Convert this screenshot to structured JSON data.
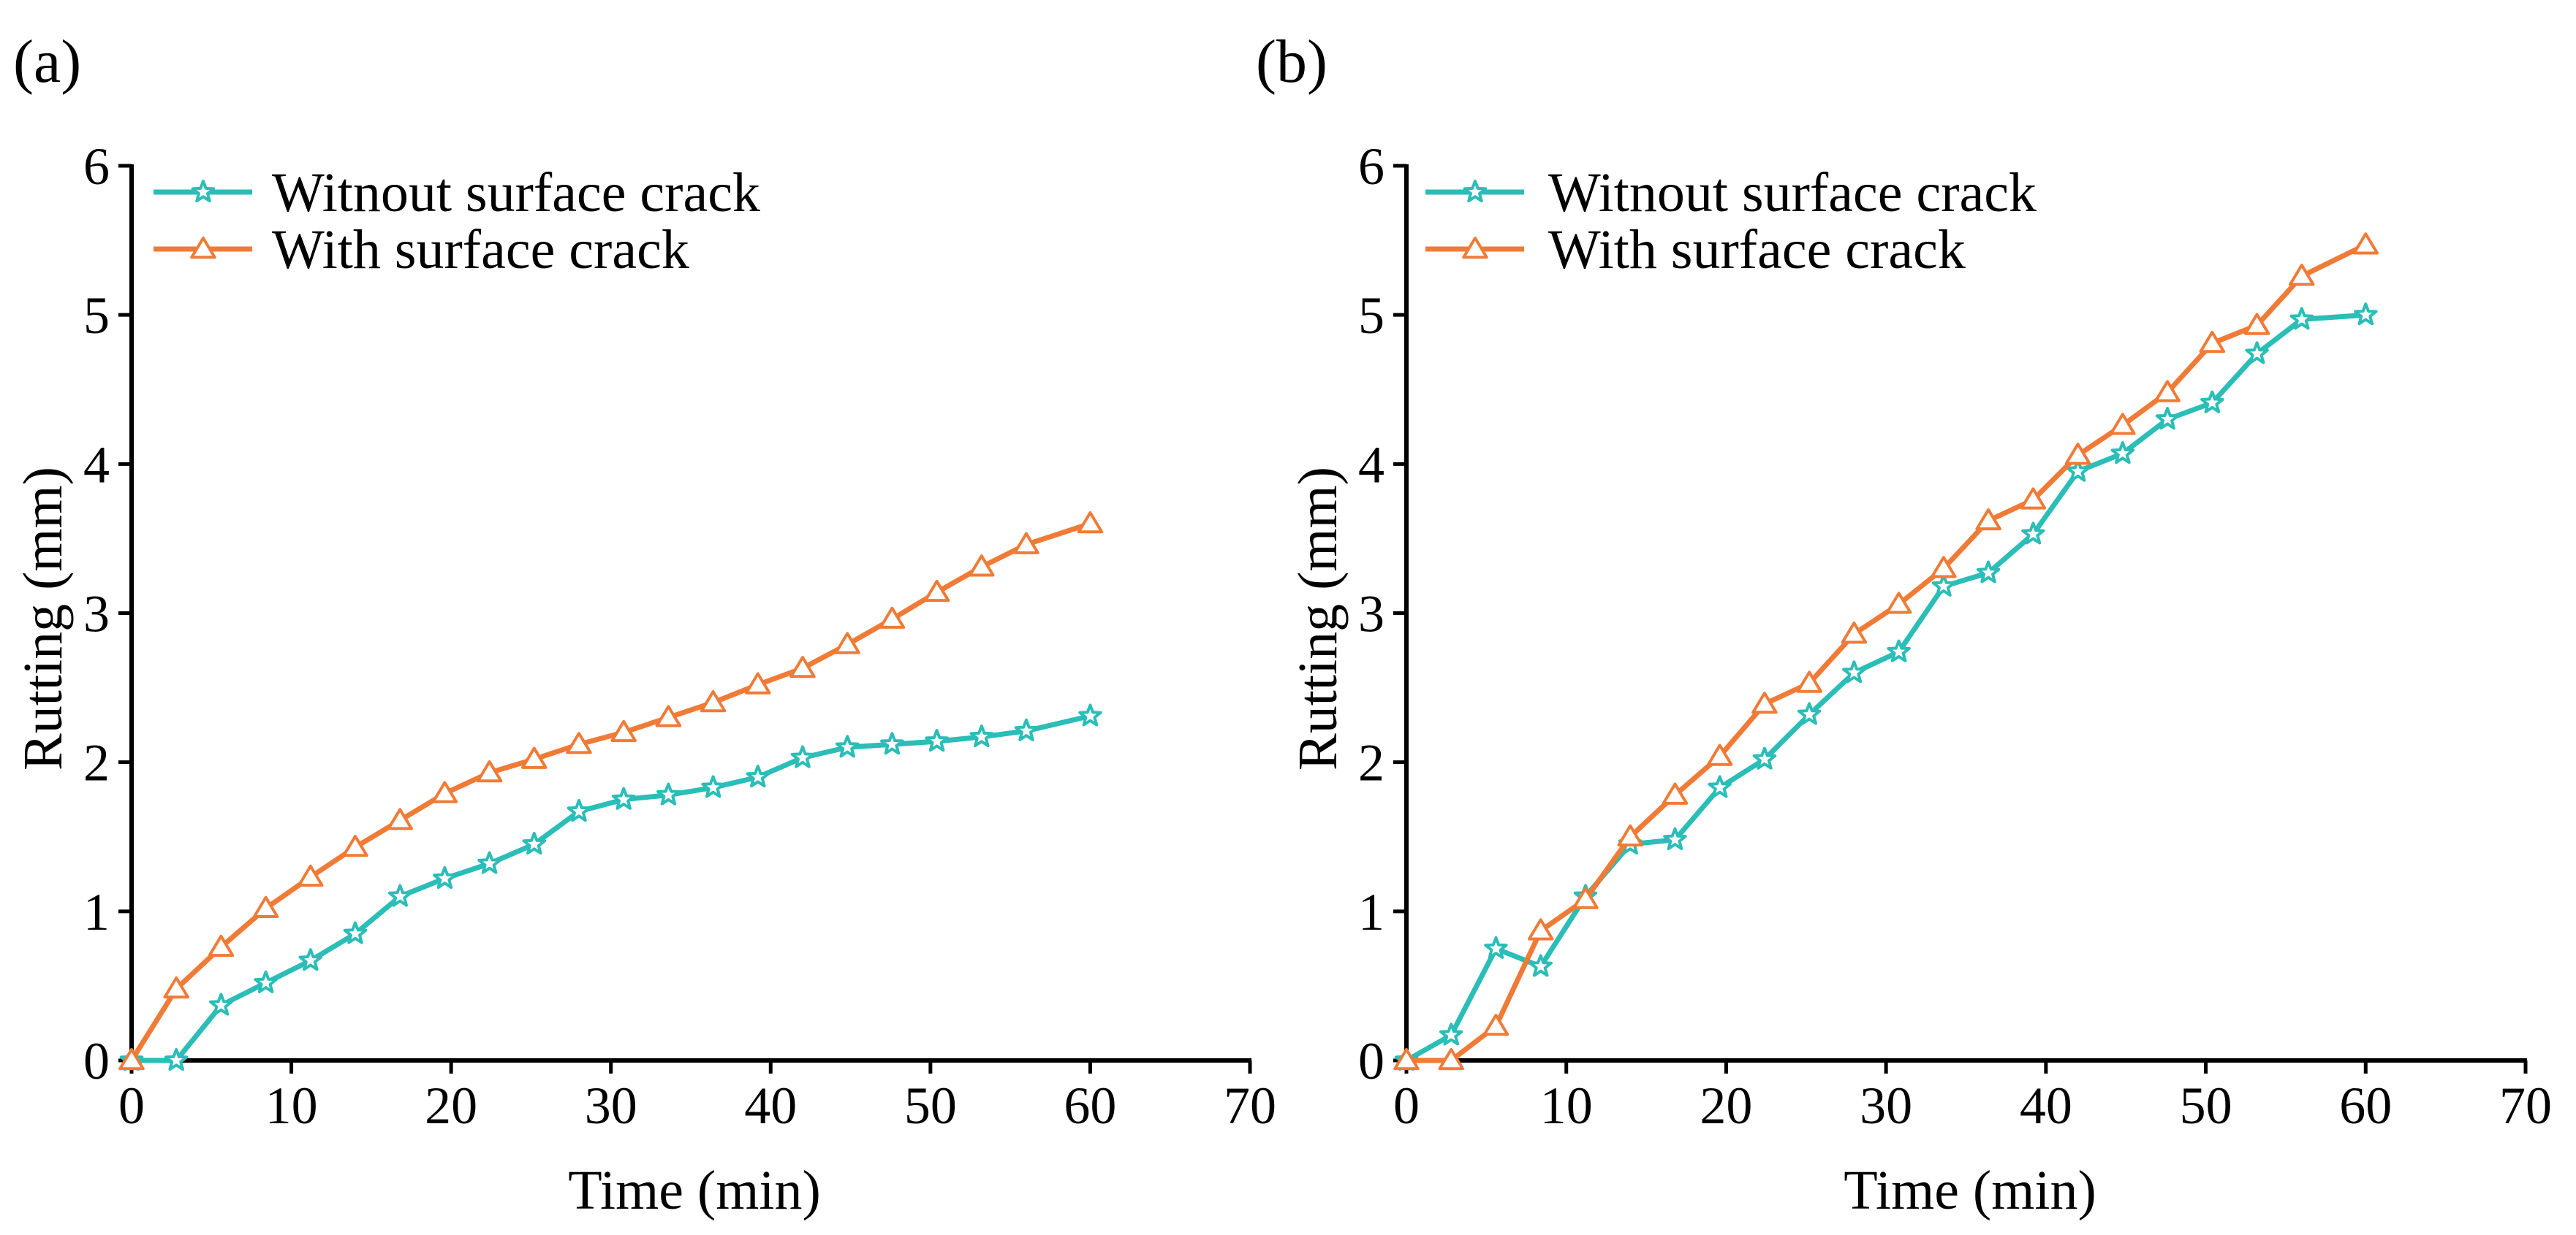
{
  "colors": {
    "without": "#2bbdb7",
    "with": "#f07b36",
    "axis": "#000000"
  },
  "chart_data": [
    {
      "type": "line",
      "panel_label": "(a)",
      "xlabel": "Time (min)",
      "ylabel": "Rutting (mm)",
      "xlim": [
        0,
        70
      ],
      "ylim": [
        0,
        6
      ],
      "xticks": [
        0,
        10,
        20,
        30,
        40,
        50,
        60,
        70
      ],
      "yticks": [
        0,
        1,
        2,
        3,
        4,
        5,
        6
      ],
      "grid": false,
      "legend_position": "top-left",
      "series": [
        {
          "name": "Witnout surface crack",
          "marker": "star",
          "color": "#2bbdb7",
          "x": [
            0,
            2.8,
            5.6,
            8.4,
            11.2,
            14,
            16.8,
            19.6,
            22.4,
            25.2,
            28,
            30.8,
            33.6,
            36.4,
            39.2,
            42,
            44.8,
            47.6,
            50.4,
            53.2,
            56,
            60
          ],
          "y": [
            0,
            0,
            0.37,
            0.52,
            0.67,
            0.85,
            1.1,
            1.22,
            1.32,
            1.45,
            1.67,
            1.75,
            1.78,
            1.83,
            1.9,
            2.03,
            2.1,
            2.12,
            2.14,
            2.17,
            2.21,
            2.31
          ]
        },
        {
          "name": "With surface crack",
          "marker": "triangle",
          "color": "#f07b36",
          "x": [
            0,
            2.8,
            5.6,
            8.4,
            11.2,
            14,
            16.8,
            19.6,
            22.4,
            25.2,
            28,
            30.8,
            33.6,
            36.4,
            39.2,
            42,
            44.8,
            47.6,
            50.4,
            53.2,
            56,
            60
          ],
          "y": [
            0,
            0.48,
            0.76,
            1.02,
            1.23,
            1.43,
            1.61,
            1.79,
            1.93,
            2.02,
            2.12,
            2.2,
            2.3,
            2.4,
            2.52,
            2.63,
            2.79,
            2.96,
            3.14,
            3.31,
            3.46,
            3.6
          ]
        }
      ]
    },
    {
      "type": "line",
      "panel_label": "(b)",
      "xlabel": "Time (min)",
      "ylabel": "Rutting (mm)",
      "xlim": [
        0,
        70
      ],
      "ylim": [
        0,
        6
      ],
      "xticks": [
        0,
        10,
        20,
        30,
        40,
        50,
        60,
        70
      ],
      "yticks": [
        0,
        1,
        2,
        3,
        4,
        5,
        6
      ],
      "grid": false,
      "legend_position": "top-left",
      "series": [
        {
          "name": "Witnout surface crack",
          "marker": "star",
          "color": "#2bbdb7",
          "x": [
            0,
            2.8,
            5.6,
            8.4,
            11.2,
            14,
            16.8,
            19.6,
            22.4,
            25.2,
            28,
            30.8,
            33.6,
            36.4,
            39.2,
            42,
            44.8,
            47.6,
            50.4,
            53.2,
            56,
            60
          ],
          "y": [
            0,
            0.17,
            0.75,
            0.63,
            1.1,
            1.45,
            1.48,
            1.83,
            2.02,
            2.32,
            2.6,
            2.74,
            3.18,
            3.27,
            3.53,
            3.95,
            4.07,
            4.3,
            4.41,
            4.74,
            4.97,
            5.0
          ]
        },
        {
          "name": "With surface crack",
          "marker": "triangle",
          "color": "#f07b36",
          "x": [
            0,
            2.8,
            5.6,
            8.4,
            11.2,
            14,
            16.8,
            19.6,
            22.4,
            25.2,
            28,
            30.8,
            33.6,
            36.4,
            39.2,
            42,
            44.8,
            47.6,
            50.4,
            53.2,
            56,
            60
          ],
          "y": [
            0,
            0,
            0.23,
            0.87,
            1.08,
            1.5,
            1.78,
            2.04,
            2.39,
            2.53,
            2.86,
            3.06,
            3.3,
            3.62,
            3.76,
            4.06,
            4.26,
            4.48,
            4.81,
            4.93,
            5.26,
            5.47
          ]
        }
      ]
    }
  ]
}
